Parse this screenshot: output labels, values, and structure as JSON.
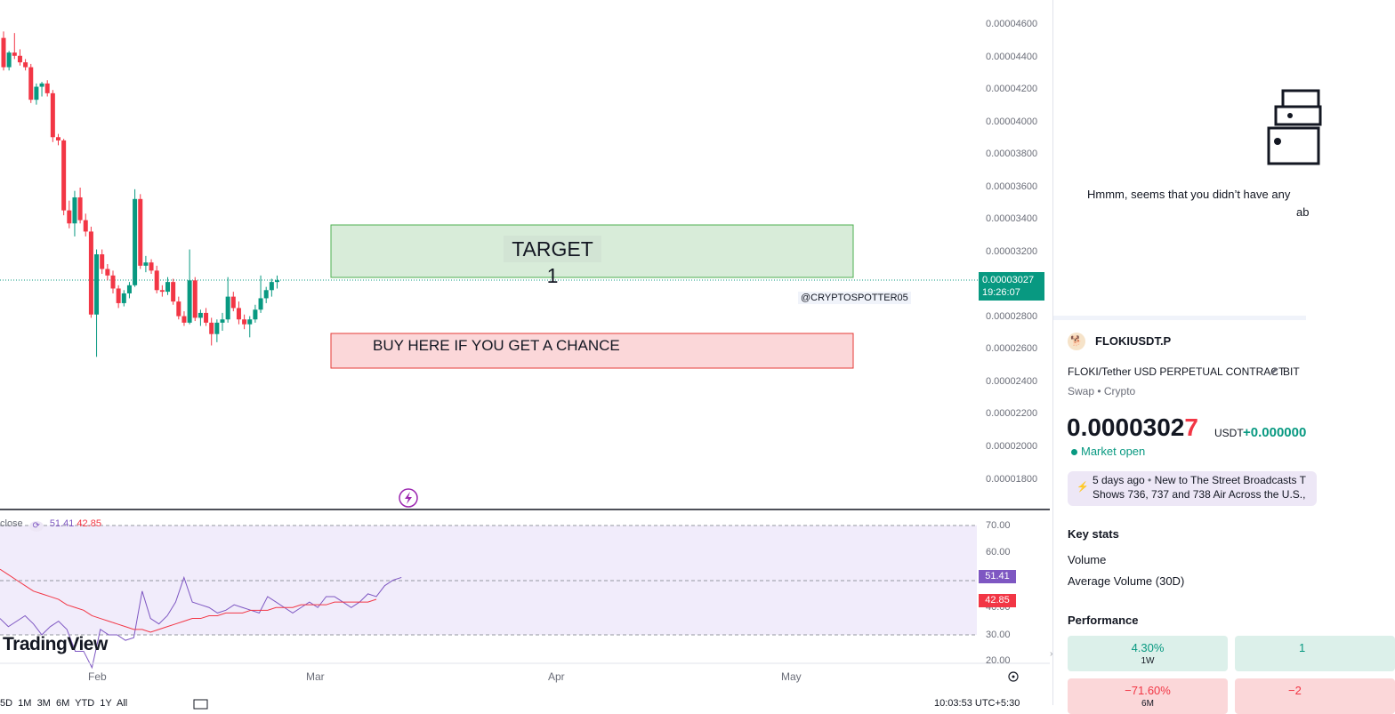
{
  "chart": {
    "price_scale": [
      "0.00004600",
      "0.00004400",
      "0.00004200",
      "0.00004000",
      "0.00003800",
      "0.00003600",
      "0.00003400",
      "0.00003200",
      "0.00002800",
      "0.00002600",
      "0.00002400",
      "0.00002200",
      "0.00002000",
      "0.00001800"
    ],
    "current_price": "0.00003027",
    "countdown": "19:26:07",
    "target_label": "TARGET 1",
    "buy_label": "BUY HERE IF YOU GET A CHANCE",
    "watermark": "@CRYPTOSPOTTER05",
    "date_labels": [
      "Feb",
      "Mar",
      "Apr",
      "May"
    ],
    "colors": {
      "up": "#089981",
      "down": "#f23645",
      "rsi": "#7e57c2",
      "ma": "#f23645"
    },
    "candles": [
      [
        4.52e-05,
        4.56e-05,
        4.32e-05,
        4.34e-05
      ],
      [
        4.34e-05,
        4.44e-05,
        4.32e-05,
        4.43e-05
      ],
      [
        4.43e-05,
        4.55e-05,
        4.39e-05,
        4.41e-05
      ],
      [
        4.41e-05,
        4.45e-05,
        4.35e-05,
        4.37e-05
      ],
      [
        4.37e-05,
        4.39e-05,
        4.32e-05,
        4.34e-05
      ],
      [
        4.34e-05,
        4.36e-05,
        4.12e-05,
        4.14e-05
      ],
      [
        4.14e-05,
        4.24e-05,
        4.11e-05,
        4.22e-05
      ],
      [
        4.22e-05,
        4.25e-05,
        4.16e-05,
        4.24e-05
      ],
      [
        4.24e-05,
        4.26e-05,
        4.16e-05,
        4.18e-05
      ],
      [
        4.18e-05,
        4.2e-05,
        3.88e-05,
        3.91e-05
      ],
      [
        3.91e-05,
        3.93e-05,
        3.86e-05,
        3.89e-05
      ],
      [
        3.89e-05,
        3.9e-05,
        3.43e-05,
        3.46e-05
      ],
      [
        3.46e-05,
        3.52e-05,
        3.35e-05,
        3.38e-05
      ],
      [
        3.38e-05,
        3.58e-05,
        3.3e-05,
        3.54e-05
      ],
      [
        3.54e-05,
        3.6e-05,
        3.38e-05,
        3.4e-05
      ],
      [
        3.4e-05,
        3.44e-05,
        3.3e-05,
        3.33e-05
      ],
      [
        3.33e-05,
        3.36e-05,
        2.8e-05,
        2.82e-05
      ],
      [
        2.82e-05,
        3.22e-05,
        2.56e-05,
        3.19e-05
      ],
      [
        3.19e-05,
        3.22e-05,
        3.07e-05,
        3.1e-05
      ],
      [
        3.1e-05,
        3.13e-05,
        3.03e-05,
        3.06e-05
      ],
      [
        3.06e-05,
        3.09e-05,
        2.95e-05,
        2.98e-05
      ],
      [
        2.98e-05,
        3e-05,
        2.86e-05,
        2.89e-05
      ],
      [
        2.89e-05,
        2.97e-05,
        2.87e-05,
        2.95e-05
      ],
      [
        2.95e-05,
        3.02e-05,
        2.92e-05,
        3e-05
      ],
      [
        3e-05,
        3.59e-05,
        2.99e-05,
        3.53e-05
      ],
      [
        3.53e-05,
        3.56e-05,
        3.1e-05,
        3.12e-05
      ],
      [
        3.12e-05,
        3.18e-05,
        3.08e-05,
        3.14e-05
      ],
      [
        3.14e-05,
        3.16e-05,
        3.07e-05,
        3.09e-05
      ],
      [
        3.09e-05,
        3.12e-05,
        2.95e-05,
        2.97e-05
      ],
      [
        2.97e-05,
        3e-05,
        2.93e-05,
        2.96e-05
      ],
      [
        2.96e-05,
        3.05e-05,
        2.94e-05,
        3.02e-05
      ],
      [
        3.02e-05,
        3.04e-05,
        2.88e-05,
        2.9e-05
      ],
      [
        2.9e-05,
        2.93e-05,
        2.79e-05,
        2.81e-05
      ],
      [
        2.81e-05,
        2.84e-05,
        2.75e-05,
        2.77e-05
      ],
      [
        2.77e-05,
        3.22e-05,
        2.76e-05,
        3.03e-05
      ],
      [
        3.03e-05,
        3.05e-05,
        2.78e-05,
        2.8e-05
      ],
      [
        2.8e-05,
        2.85e-05,
        2.75e-05,
        2.83e-05
      ],
      [
        2.83e-05,
        2.86e-05,
        2.75e-05,
        2.77e-05
      ],
      [
        2.77e-05,
        2.8e-05,
        2.63e-05,
        2.7e-05
      ],
      [
        2.7e-05,
        2.79e-05,
        2.65e-05,
        2.77e-05
      ],
      [
        2.77e-05,
        2.83e-05,
        2.72e-05,
        2.79e-05
      ],
      [
        2.79e-05,
        3.05e-05,
        2.77e-05,
        2.93e-05
      ],
      [
        2.93e-05,
        2.96e-05,
        2.84e-05,
        2.86e-05
      ],
      [
        2.86e-05,
        2.9e-05,
        2.76e-05,
        2.79e-05
      ],
      [
        2.79e-05,
        2.82e-05,
        2.73e-05,
        2.76e-05
      ],
      [
        2.76e-05,
        2.81e-05,
        2.68e-05,
        2.79e-05
      ],
      [
        2.79e-05,
        2.88e-05,
        2.77e-05,
        2.85e-05
      ],
      [
        2.85e-05,
        3.06e-05,
        2.83e-05,
        2.92e-05
      ],
      [
        2.92e-05,
        2.99e-05,
        2.89e-05,
        2.97e-05
      ],
      [
        2.97e-05,
        3.04e-05,
        2.93e-05,
        3.02e-05
      ],
      [
        3.02e-05,
        3.06e-05,
        2.98e-05,
        3.03e-05
      ]
    ]
  },
  "rsi": {
    "legend_prefix": "close",
    "rsi_value": "51.41",
    "ma_value": "42.85",
    "scale": [
      "70.00",
      "60.00",
      "40.00",
      "30.00",
      "20.00"
    ],
    "rsi_series": [
      36,
      33,
      35,
      37,
      34,
      30,
      33,
      35,
      32,
      24,
      24,
      18,
      32,
      30,
      30,
      28,
      29,
      46,
      36,
      34,
      37,
      42,
      51,
      42,
      41,
      40,
      38,
      39,
      41,
      40,
      39,
      38,
      44,
      42,
      40,
      38,
      40,
      42,
      40,
      44,
      44,
      42,
      40,
      42,
      45,
      44,
      48,
      50,
      51
    ],
    "ma_series": [
      54,
      52,
      50,
      48,
      46,
      45,
      44,
      43,
      41,
      40,
      39,
      37,
      36,
      35,
      34,
      33,
      32,
      32,
      31,
      32,
      33,
      34,
      35,
      36,
      36,
      37,
      37,
      38,
      38,
      38,
      39,
      39,
      39,
      40,
      40,
      40,
      41,
      41,
      41,
      41,
      42,
      42,
      42,
      42,
      42,
      43
    ]
  },
  "logo": "TradingView",
  "panel": {
    "empty_message_line1": "Hmmm, seems that you didn’t have any",
    "empty_message_line2": "ab",
    "symbol": "FLOKIUSDT.P",
    "description": "FLOKI/Tether USD PERPETUAL CONTRACT",
    "exchange_cut": "BIT",
    "type_tags": "Swap • Crypto",
    "price_main": "0.0000302",
    "price_last_digit": "7",
    "currency": "USDT",
    "change": "+0.000000",
    "market_status": "Market open",
    "news_time": "5 days ago",
    "news_headline_1": "New to The Street Broadcasts T",
    "news_headline_2": "Shows 736, 737 and 738 Air Across the U.S.,",
    "key_stats_title": "Key stats",
    "volume_label": "Volume",
    "avg_volume_label": "Average Volume (30D)",
    "performance_title": "Performance",
    "perf": [
      {
        "value": "4.30%",
        "period": "1W"
      },
      {
        "value": "1",
        "period": ""
      },
      {
        "value": "−71.60%",
        "period": "6M"
      },
      {
        "value": "−2",
        "period": ""
      }
    ],
    "status_colors": {
      "positive": "#089981",
      "negative": "#f23645"
    }
  },
  "bottom_bar": {
    "ranges": "5D  1M  3M  6M  YTD  1Y  All",
    "time": "10:03:53 UTC+5:30"
  }
}
